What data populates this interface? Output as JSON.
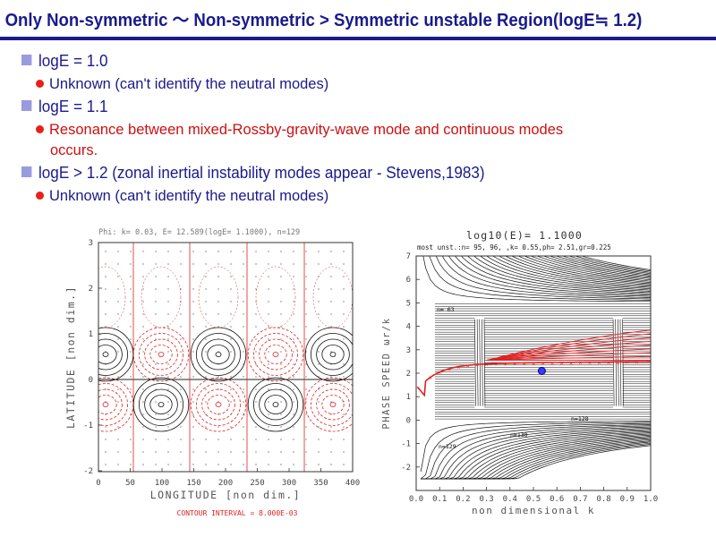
{
  "slide": {
    "title": "Only Non-symmetric 〜 Non-symmetric > Symmetric unstable Region(logE≒ 1.2)",
    "bullets": [
      {
        "text": "logE = 1.0",
        "sub": "Unknown (can't identify the neutral modes)"
      },
      {
        "text": "logE = 1.1",
        "sub": "Resonance between mixed-Rossby-gravity-wave mode and continuous modes",
        "sub2": "occurs."
      },
      {
        "text": "logE > 1.2 (zonal inertial instability modes appear - Stevens,1983)",
        "sub": "Unknown (can't identify the neutral modes)"
      }
    ]
  },
  "left_plot": {
    "header": "Phi: k= 0.03, E= 12.589(logE= 1.1000), n=129",
    "xlabel": "LONGITUDE [non dim.]",
    "ylabel": "LATITUDE [non dim.]",
    "footer": "CONTOUR INTERVAL = 8.000E-03",
    "xticks": [
      "0",
      "50",
      "100",
      "150",
      "200",
      "250",
      "300",
      "350",
      "400"
    ],
    "yticks": [
      "3",
      "2",
      "1",
      "0",
      "-1",
      "-2"
    ],
    "contour_labels": [
      "0.00",
      "0.00",
      "0.00",
      "0.00",
      "0.00",
      "0.016",
      "-0.016",
      "0.016",
      "-0.016",
      "0.016",
      "-0.016"
    ]
  },
  "right_plot": {
    "header": "log10(E)= 1.1000",
    "subheader": "most unst.:n= 95, 96,  ,k= 0.55,ph= 2.51,gr=0.225",
    "xlabel": "non dimensional k",
    "ylabel": "PHASE SPEED ωr/k",
    "xticks": [
      "0.0",
      "0.1",
      "0.2",
      "0.3",
      "0.4",
      "0.5",
      "0.6",
      "0.7",
      "0.8",
      "0.9",
      "1.0"
    ],
    "yticks": [
      "7",
      "6",
      "5",
      "4",
      "3",
      "2",
      "1",
      "0",
      "-1",
      "-2"
    ],
    "annotations": [
      "n= 63",
      "n=129",
      "n=128",
      "n=130"
    ]
  },
  "colors": {
    "title": "#1a1a8c",
    "bullet_square": "#9a9ae0",
    "bullet_dot": "#e8201c",
    "red_text": "#cc1010",
    "plot_red": "#e02020"
  }
}
